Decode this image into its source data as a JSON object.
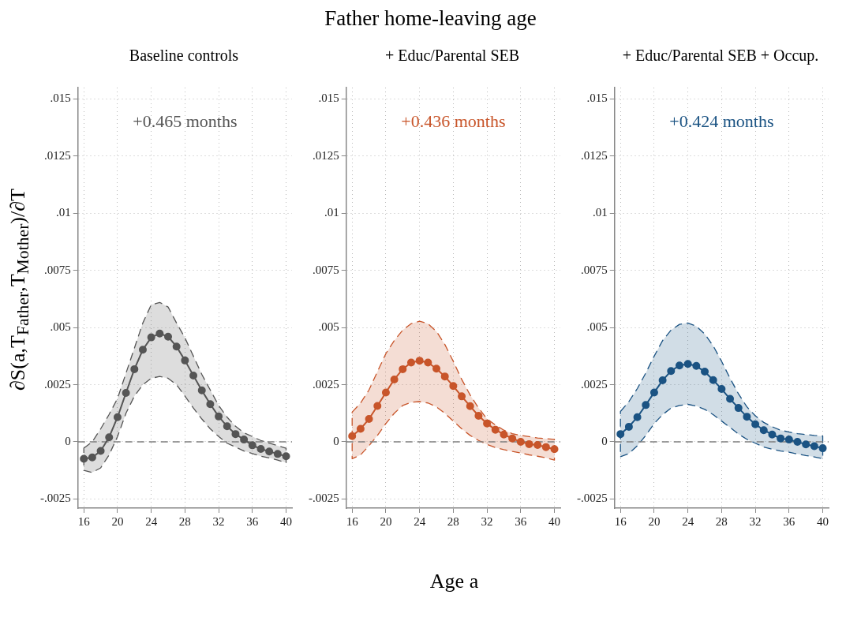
{
  "chart_data": [
    {
      "type": "line",
      "subtitle": "Baseline controls",
      "ylabel": "∂S(a,T$_{Father}$,T$_{Mother}$)/∂T",
      "annotations": [
        "+0.465 months"
      ],
      "x": [
        16,
        17,
        18,
        19,
        20,
        21,
        22,
        23,
        24,
        25,
        26,
        27,
        28,
        29,
        30,
        31,
        32,
        33,
        34,
        35,
        36,
        37,
        38,
        39,
        40
      ],
      "series": [
        {
          "color": "#555555",
          "values": [
            -0.00074,
            -0.00068,
            -0.0004,
            0.0002,
            0.00108,
            0.00214,
            0.00318,
            0.00403,
            0.00457,
            0.00474,
            0.0046,
            0.00417,
            0.00356,
            0.0029,
            0.00225,
            0.00165,
            0.00111,
            0.00068,
            0.00034,
            0.0001,
            -0.00015,
            -0.00031,
            -0.00042,
            -0.00053,
            -0.00063
          ],
          "upper": [
            -0.00028,
            0,
            0.00057,
            0.0012,
            0.0019,
            0.003,
            0.0041,
            0.0052,
            0.006,
            0.0061,
            0.0059,
            0.0052,
            0.00455,
            0.00375,
            0.00295,
            0.00227,
            0.00159,
            0.00108,
            0.00068,
            0.0004,
            0.00023,
            6e-05,
            -6e-05,
            -0.00017,
            -0.00028
          ],
          "lower": [
            -0.00125,
            -0.00134,
            -0.00114,
            -0.00057,
            0.00023,
            0.00125,
            0.002,
            0.0025,
            0.00278,
            0.00286,
            0.00278,
            0.0025,
            0.002,
            0.00148,
            0.001,
            0.00057,
            0.00023,
            -6e-05,
            -0.00023,
            -0.0004,
            -0.00051,
            -0.00063,
            -0.0007,
            -0.0008,
            -0.00091
          ]
        }
      ],
      "xlim": [
        15.3,
        40.7
      ],
      "xticks": [
        16,
        20,
        24,
        28,
        32,
        36,
        40
      ],
      "ylim": [
        -0.0029,
        0.0155
      ],
      "yticks": [
        {
          "value": -0.0025,
          "label": "-.0025"
        },
        {
          "value": 0,
          "label": "0"
        },
        {
          "value": 0.0025,
          "label": ".0025"
        },
        {
          "value": 0.005,
          "label": ".005"
        },
        {
          "value": 0.0075,
          "label": ".0075"
        },
        {
          "value": 0.01,
          "label": ".01"
        },
        {
          "value": 0.0125,
          "label": ".0125"
        },
        {
          "value": 0.015,
          "label": ".015"
        }
      ],
      "ref_lines": [
        {
          "axis": "y",
          "value": 0,
          "color": "#808080",
          "line_style": "dashed"
        }
      ],
      "grid": true,
      "legend": false,
      "marker": "circle",
      "line_style": "solid"
    },
    {
      "type": "line",
      "title": "Father home-leaving age",
      "subtitle": "+ Educ/Parental SEB",
      "xlabel": "Age a",
      "annotations": [
        "+0.436 months"
      ],
      "x": [
        16,
        17,
        18,
        19,
        20,
        21,
        22,
        23,
        24,
        25,
        26,
        27,
        28,
        29,
        30,
        31,
        32,
        33,
        34,
        35,
        36,
        37,
        38,
        39,
        40
      ],
      "series": [
        {
          "color": "#c8552a",
          "values": [
            0.00025,
            0.00057,
            0.001,
            0.00157,
            0.00216,
            0.00273,
            0.00318,
            0.00347,
            0.00355,
            0.00347,
            0.0032,
            0.00286,
            0.00244,
            0.00199,
            0.00156,
            0.00114,
            0.0008,
            0.00053,
            0.00032,
            0.00015,
            0,
            -0.0001,
            -0.00014,
            -0.00023,
            -0.00032
          ],
          "upper": [
            0.0013,
            0.0017,
            0.00227,
            0.00307,
            0.00386,
            0.00443,
            0.00489,
            0.00517,
            0.00528,
            0.00517,
            0.00483,
            0.00426,
            0.00352,
            0.00273,
            0.00205,
            0.00148,
            0.001,
            0.00074,
            0.00051,
            0.00036,
            0.00028,
            0.00023,
            0.00017,
            0.00014,
            0.00011
          ],
          "lower": [
            -0.00074,
            -0.00057,
            -0.00017,
            0.00028,
            0.0008,
            0.00125,
            0.00159,
            0.00173,
            0.00176,
            0.0017,
            0.00153,
            0.00125,
            0.00091,
            0.00057,
            0.00028,
            6e-05,
            -0.00011,
            -0.00025,
            -0.00034,
            -0.00042,
            -0.00049,
            -0.00057,
            -0.00063,
            -0.0007,
            -0.0008
          ]
        }
      ],
      "xlim": [
        15.3,
        40.7
      ],
      "xticks": [
        16,
        20,
        24,
        28,
        32,
        36,
        40
      ],
      "ylim": [
        -0.0029,
        0.0155
      ],
      "yticks": [
        {
          "value": -0.0025,
          "label": "-.0025"
        },
        {
          "value": 0,
          "label": "0"
        },
        {
          "value": 0.0025,
          "label": ".0025"
        },
        {
          "value": 0.005,
          "label": ".005"
        },
        {
          "value": 0.0075,
          "label": ".0075"
        },
        {
          "value": 0.01,
          "label": ".01"
        },
        {
          "value": 0.0125,
          "label": ".0125"
        },
        {
          "value": 0.015,
          "label": ".015"
        }
      ],
      "ref_lines": [
        {
          "axis": "y",
          "value": 0,
          "color": "#808080",
          "line_style": "dashed"
        }
      ],
      "grid": true,
      "legend": false,
      "marker": "circle",
      "line_style": "solid"
    },
    {
      "type": "line",
      "subtitle": "+ Educ/Parental SEB + Occup.",
      "annotations": [
        "+0.424 months"
      ],
      "x": [
        16,
        17,
        18,
        19,
        20,
        21,
        22,
        23,
        24,
        25,
        26,
        27,
        28,
        29,
        30,
        31,
        32,
        33,
        34,
        35,
        36,
        37,
        38,
        39,
        40
      ],
      "series": [
        {
          "color": "#1b5383",
          "values": [
            0.00034,
            0.00066,
            0.00108,
            0.00161,
            0.00216,
            0.00269,
            0.0031,
            0.00334,
            0.00341,
            0.00332,
            0.00307,
            0.0027,
            0.00231,
            0.00188,
            0.00148,
            0.0011,
            0.00077,
            0.00051,
            0.00032,
            0.00015,
            0.0001,
            0,
            -0.00011,
            -0.00019,
            -0.00028
          ],
          "upper": [
            0.00133,
            0.00176,
            0.00233,
            0.00301,
            0.00375,
            0.00443,
            0.00489,
            0.00514,
            0.0052,
            0.00506,
            0.00472,
            0.0042,
            0.00352,
            0.00278,
            0.0021,
            0.00153,
            0.00114,
            0.00085,
            0.00066,
            0.00051,
            0.00043,
            0.00036,
            0.00032,
            0.00028,
            0.00025
          ],
          "lower": [
            -0.00065,
            -0.00051,
            -0.00017,
            0.00028,
            0.0008,
            0.00119,
            0.00148,
            0.00159,
            0.00164,
            0.00157,
            0.00142,
            0.00119,
            0.00091,
            0.00063,
            0.00034,
            0.00011,
            -6e-05,
            -0.00023,
            -0.00032,
            -0.0004,
            -0.00045,
            -0.00053,
            -0.0006,
            -0.00066,
            -0.00074
          ]
        }
      ],
      "xlim": [
        15.3,
        40.7
      ],
      "xticks": [
        16,
        20,
        24,
        28,
        32,
        36,
        40
      ],
      "ylim": [
        -0.0029,
        0.0155
      ],
      "yticks": [
        {
          "value": -0.0025,
          "label": "-.0025"
        },
        {
          "value": 0,
          "label": "0"
        },
        {
          "value": 0.0025,
          "label": ".0025"
        },
        {
          "value": 0.005,
          "label": ".005"
        },
        {
          "value": 0.0075,
          "label": ".0075"
        },
        {
          "value": 0.01,
          "label": ".01"
        },
        {
          "value": 0.0125,
          "label": ".0125"
        },
        {
          "value": 0.015,
          "label": ".015"
        }
      ],
      "ref_lines": [
        {
          "axis": "y",
          "value": 0,
          "color": "#808080",
          "line_style": "dashed"
        }
      ],
      "grid": true,
      "legend": false,
      "marker": "circle",
      "line_style": "solid"
    }
  ]
}
